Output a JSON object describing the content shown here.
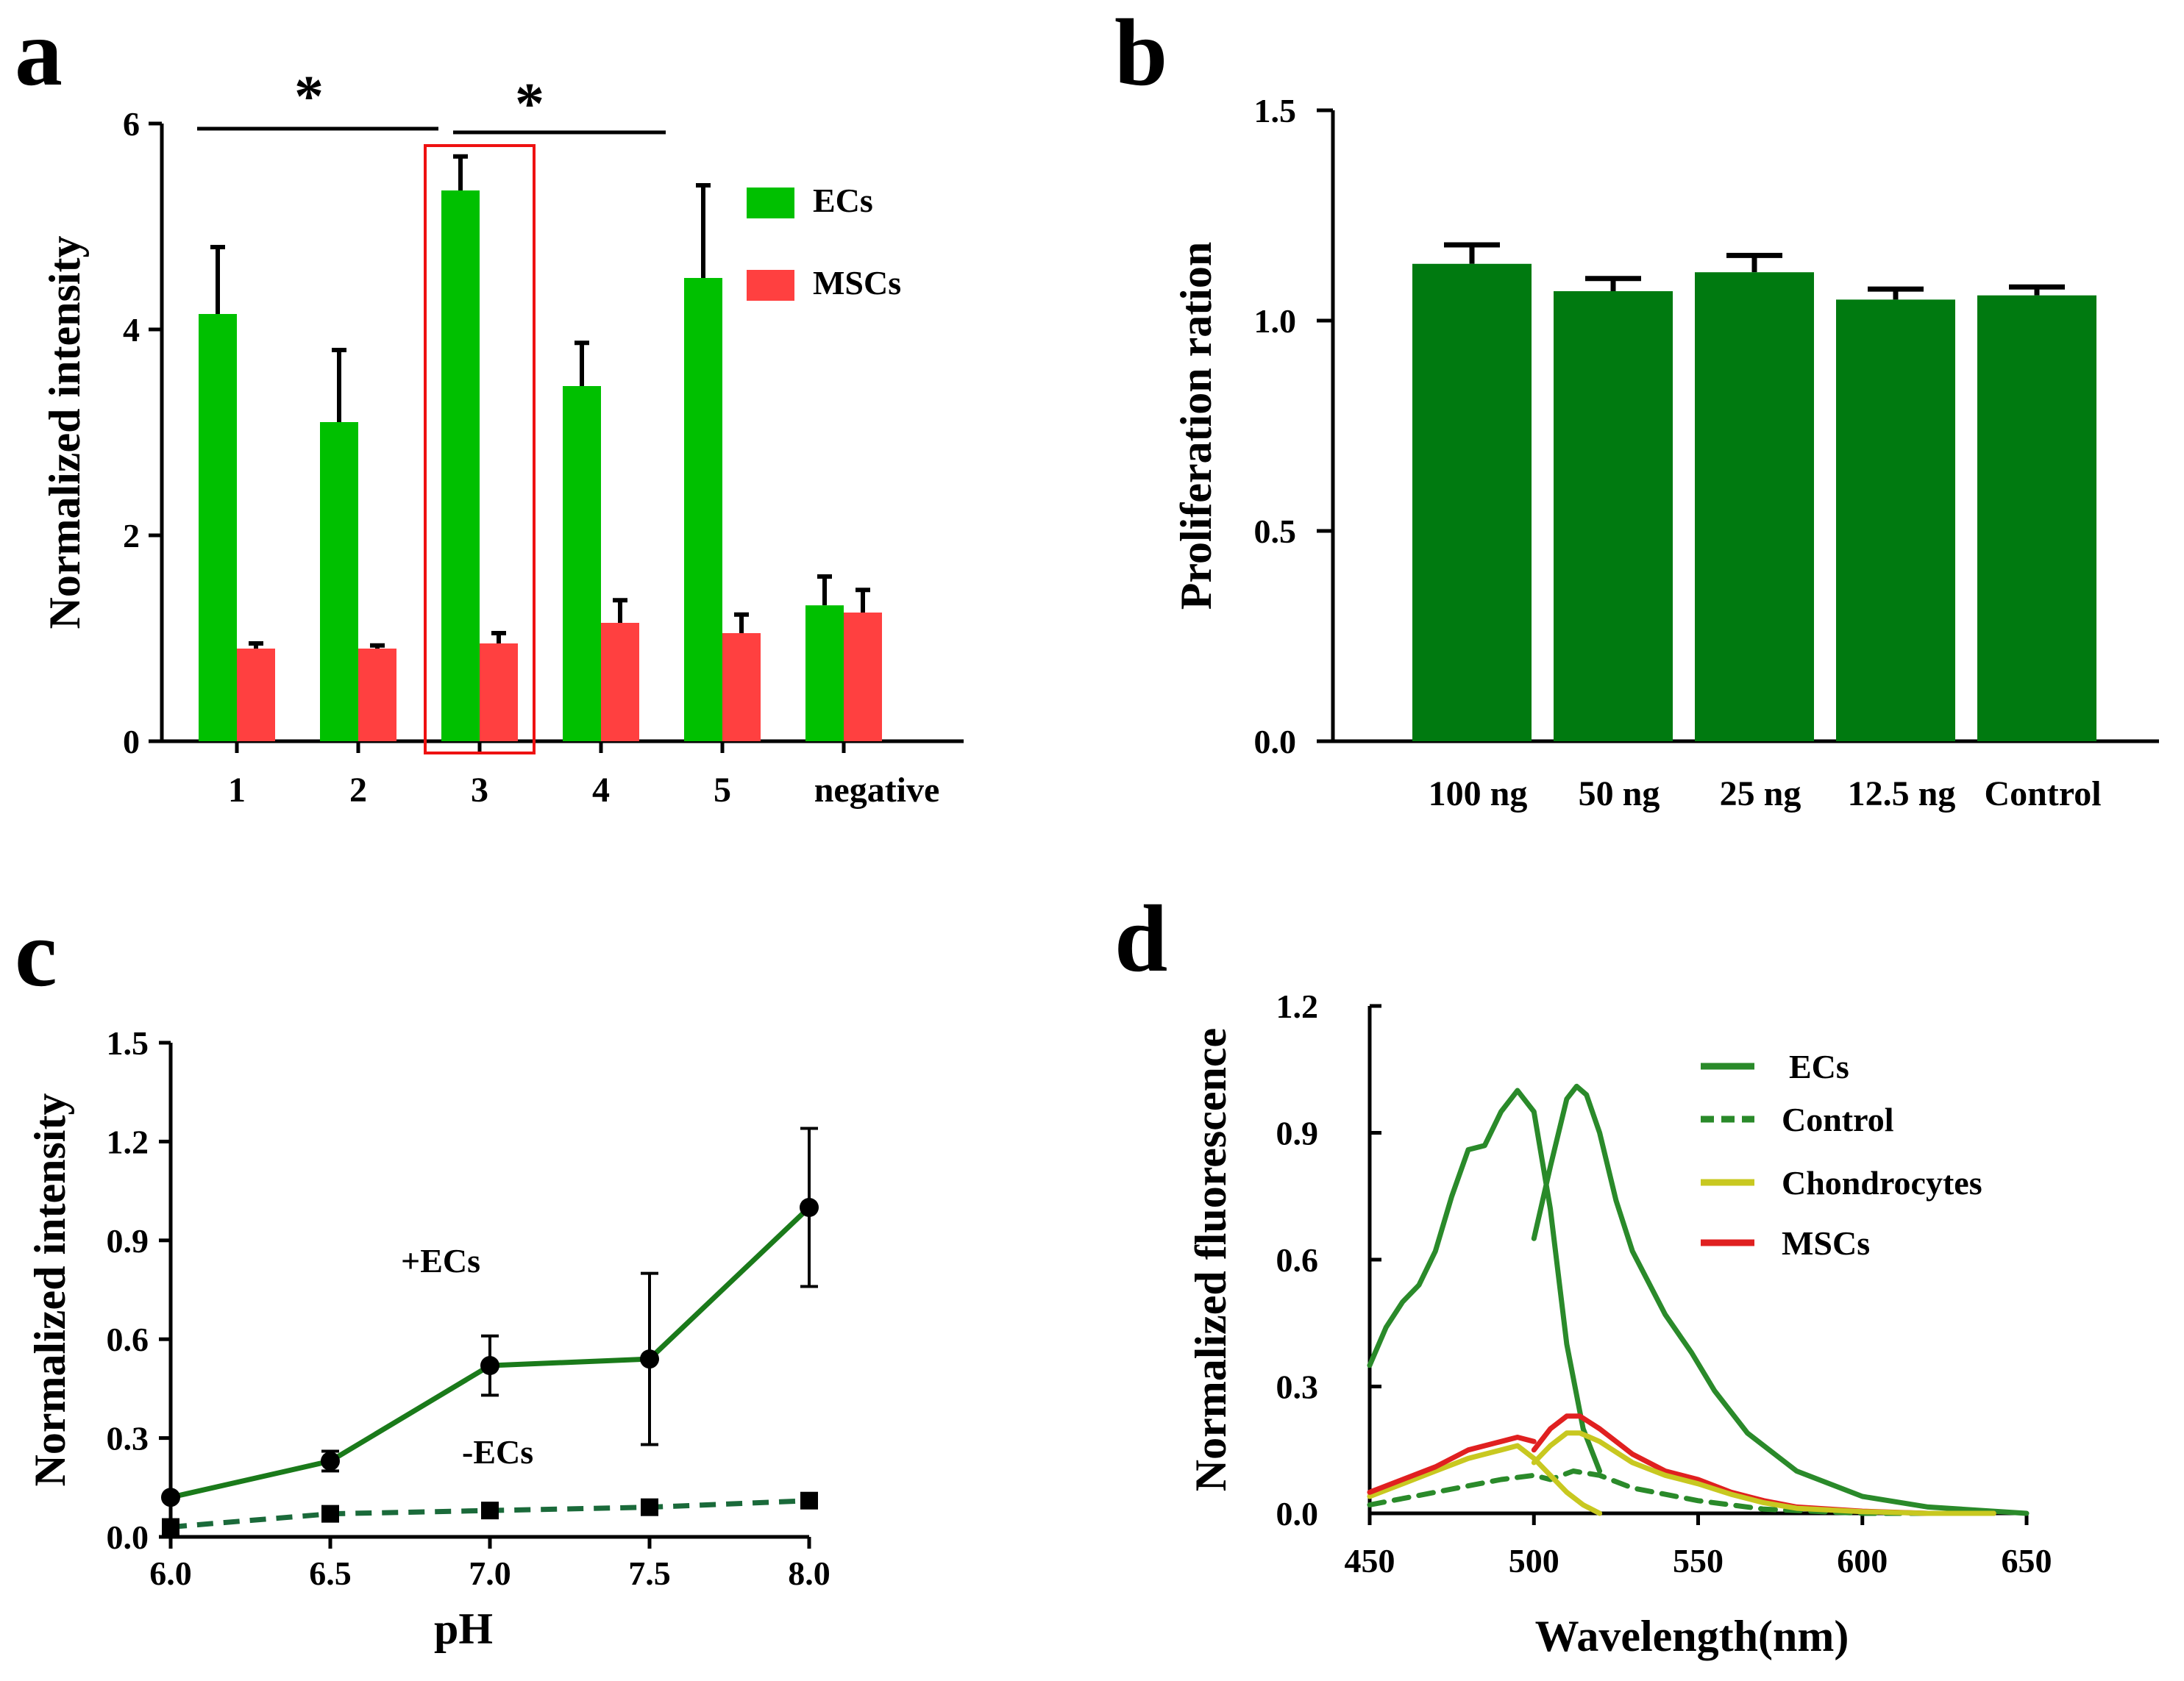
{
  "chart_data": [
    {
      "panel": "a",
      "type": "bar",
      "ylabel": "Normalized intensity",
      "ylim": [
        0,
        6
      ],
      "yticks": [
        "0",
        "2",
        "4",
        "6"
      ],
      "categories": [
        "1",
        "2",
        "3",
        "4",
        "5",
        "negative"
      ],
      "series": [
        {
          "name": "ECs",
          "color": "#00c000",
          "values": [
            4.15,
            3.1,
            5.35,
            3.45,
            4.5,
            1.32
          ],
          "errors": [
            0.65,
            0.7,
            0.33,
            0.42,
            0.9,
            0.28
          ]
        },
        {
          "name": "MSCs",
          "color": "#ff4040",
          "values": [
            0.9,
            0.9,
            0.95,
            1.15,
            1.05,
            1.25
          ],
          "errors": [
            0.05,
            0.03,
            0.1,
            0.22,
            0.18,
            0.22
          ]
        }
      ],
      "annotations": [
        "*",
        "*"
      ],
      "highlight_category": "3",
      "highlight_color": "#ee1111"
    },
    {
      "panel": "b",
      "type": "bar",
      "ylabel": "Proliferation ration",
      "ylim": [
        0,
        1.5
      ],
      "yticks": [
        "0.0",
        "0.5",
        "1.0",
        "1.5"
      ],
      "categories": [
        "100 ng",
        "50 ng",
        "25 ng",
        "12.5 ng",
        "Control"
      ],
      "series": [
        {
          "name": "Proliferation",
          "color": "#007a10",
          "values": [
            1.135,
            1.07,
            1.115,
            1.05,
            1.06
          ],
          "errors": [
            0.045,
            0.03,
            0.04,
            0.025,
            0.02
          ]
        }
      ]
    },
    {
      "panel": "c",
      "type": "line",
      "xlabel": "pH",
      "ylabel": "Normalized intensity",
      "xlim": [
        6.0,
        8.0
      ],
      "ylim": [
        0,
        1.5
      ],
      "xticks": [
        "6.0",
        "6.5",
        "7.0",
        "7.5",
        "8.0"
      ],
      "yticks": [
        "0.0",
        "0.3",
        "0.6",
        "0.9",
        "1.2",
        "1.5"
      ],
      "x": [
        6.0,
        6.5,
        7.0,
        7.5,
        8.0
      ],
      "series": [
        {
          "name": "+ECs",
          "color": "#1a7a1a",
          "marker": "circle",
          "style": "solid",
          "values": [
            0.12,
            0.23,
            0.52,
            0.54,
            1.0
          ],
          "errors": [
            0.0,
            0.03,
            0.09,
            0.26,
            0.24
          ]
        },
        {
          "name": "-ECs",
          "color": "#1a6a3a",
          "marker": "square",
          "style": "dashed",
          "values": [
            0.03,
            0.07,
            0.08,
            0.09,
            0.11
          ],
          "errors": [
            0,
            0,
            0,
            0,
            0
          ]
        }
      ]
    },
    {
      "panel": "d",
      "type": "line",
      "xlabel": "Wavelength(nm)",
      "ylabel": "Normalized fluorescence",
      "xlim": [
        450,
        650
      ],
      "ylim": [
        0,
        1.2
      ],
      "xticks": [
        "450",
        "500",
        "550",
        "600",
        "650"
      ],
      "yticks": [
        "0.0",
        "0.3",
        "0.6",
        "0.9",
        "1.2"
      ],
      "series": [
        {
          "name": "ECs",
          "color": "#2a8a2a",
          "style": "solid",
          "x": [
            450,
            455,
            460,
            465,
            470,
            475,
            480,
            485,
            490,
            495,
            500,
            505,
            510,
            515,
            520
          ],
          "values": [
            0.35,
            0.44,
            0.5,
            0.54,
            0.62,
            0.75,
            0.86,
            0.87,
            0.95,
            1.0,
            0.95,
            0.72,
            0.4,
            0.2,
            0.1
          ]
        },
        {
          "name": "ECs",
          "color": "#2a8a2a",
          "style": "solid",
          "x": [
            500,
            505,
            510,
            513,
            516,
            520,
            525,
            530,
            540,
            548,
            555,
            565,
            580,
            600,
            620,
            650
          ],
          "values": [
            0.65,
            0.82,
            0.98,
            1.01,
            0.99,
            0.9,
            0.74,
            0.62,
            0.47,
            0.38,
            0.29,
            0.19,
            0.1,
            0.04,
            0.015,
            0.0
          ]
        },
        {
          "name": "Control",
          "color": "#2a8a2a",
          "style": "dashed",
          "x": [
            450,
            470,
            490,
            500,
            505,
            512,
            520,
            530,
            550,
            570,
            600,
            630
          ],
          "values": [
            0.02,
            0.05,
            0.08,
            0.09,
            0.08,
            0.1,
            0.09,
            0.06,
            0.03,
            0.01,
            0.0,
            0.0
          ]
        },
        {
          "name": "Chondrocytes",
          "color": "#c8c820",
          "style": "solid",
          "x": [
            450,
            460,
            470,
            480,
            490,
            495,
            500,
            505,
            510,
            515,
            520
          ],
          "values": [
            0.04,
            0.07,
            0.1,
            0.13,
            0.15,
            0.16,
            0.13,
            0.09,
            0.05,
            0.02,
            0.0
          ]
        },
        {
          "name": "MSCs",
          "color": "#e02020",
          "style": "solid",
          "x": [
            450,
            460,
            470,
            480,
            490,
            495,
            500
          ],
          "values": [
            0.05,
            0.08,
            0.11,
            0.15,
            0.17,
            0.18,
            0.17
          ]
        },
        {
          "name": "MSCs",
          "color": "#e02020",
          "style": "solid",
          "x": [
            500,
            505,
            510,
            514,
            520,
            530,
            540,
            550,
            560,
            570,
            580,
            600,
            620,
            640
          ],
          "values": [
            0.15,
            0.2,
            0.23,
            0.23,
            0.2,
            0.14,
            0.1,
            0.08,
            0.05,
            0.03,
            0.015,
            0.005,
            0.0,
            0.0
          ]
        },
        {
          "name": "Chondrocytes",
          "color": "#c8c820",
          "style": "solid",
          "x": [
            500,
            505,
            510,
            514,
            520,
            530,
            540,
            550,
            560,
            570,
            580,
            600,
            620,
            640
          ],
          "values": [
            0.12,
            0.16,
            0.19,
            0.19,
            0.17,
            0.12,
            0.09,
            0.07,
            0.045,
            0.025,
            0.012,
            0.004,
            0.0,
            0.0
          ]
        }
      ],
      "legend": [
        {
          "label": "ECs",
          "color": "#2a8a2a",
          "style": "solid"
        },
        {
          "label": "Control",
          "color": "#2a8a2a",
          "style": "dashed"
        },
        {
          "label": "Chondrocytes",
          "color": "#c8c820",
          "style": "solid"
        },
        {
          "label": "MSCs",
          "color": "#e02020",
          "style": "solid"
        }
      ]
    }
  ],
  "labels": {
    "a": "a",
    "b": "b",
    "c": "c",
    "d": "d",
    "c_plus": "+ECs",
    "c_minus": "-ECs"
  }
}
